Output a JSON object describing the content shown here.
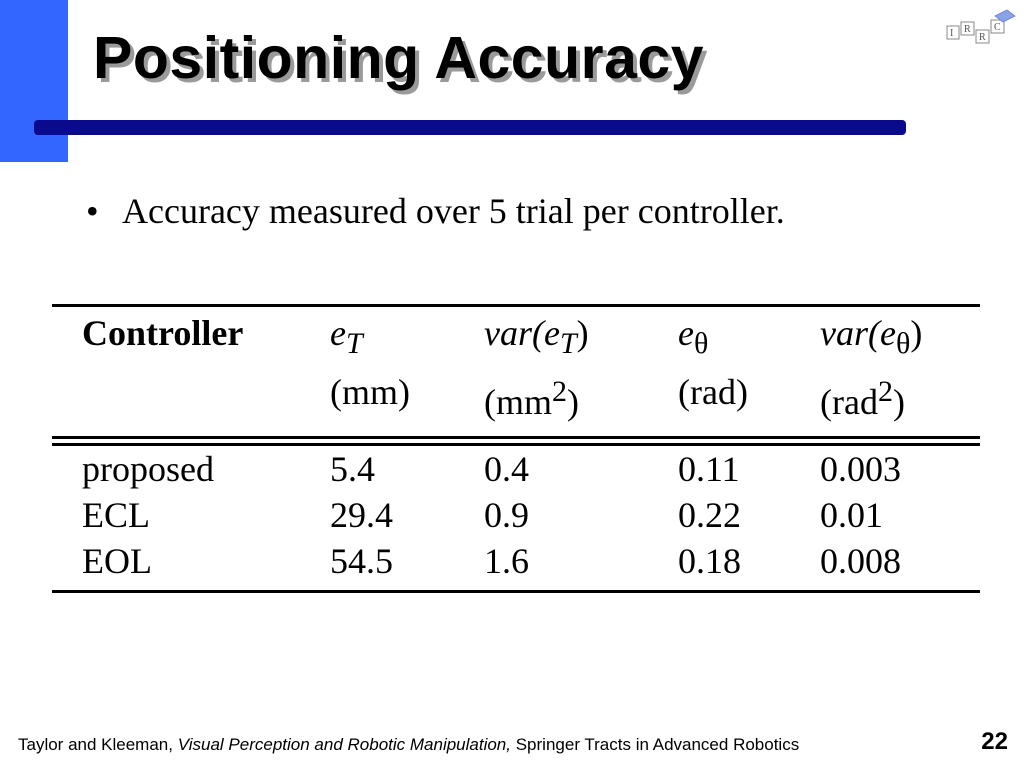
{
  "slide": {
    "title": "Positioning Accuracy",
    "bullet": "Accuracy measured over 5 trial per controller.",
    "bullet_marker": "•",
    "logo_letters": [
      "I",
      "R",
      "R",
      "C"
    ],
    "page_number": "22",
    "colors": {
      "side_bar": "#3366ff",
      "title_rule": "#0a0a8c",
      "title_shadow": "#9a9a9a"
    }
  },
  "table": {
    "header": {
      "controller": "Controller",
      "c1_sym": "e",
      "c1_sub": "T",
      "c1_unit": "(mm)",
      "c2_fn": "var(",
      "c2_sym": "e",
      "c2_sub": "T",
      "c2_close": ")",
      "c2_unit_a": "(mm",
      "c2_unit_sup": "2",
      "c2_unit_b": ")",
      "c3_sym": "e",
      "c3_sub": "θ",
      "c3_unit": "(rad)",
      "c4_fn": "var(",
      "c4_sym": "e",
      "c4_sub": "θ",
      "c4_close": ")",
      "c4_unit_a": "(rad",
      "c4_unit_sup": "2",
      "c4_unit_b": ")"
    },
    "rows": [
      {
        "controller": "proposed",
        "eT": "5.4",
        "var_eT": "0.4",
        "etheta": "0.11",
        "var_etheta": "0.003"
      },
      {
        "controller": "ECL",
        "eT": "29.4",
        "var_eT": "0.9",
        "etheta": "0.22",
        "var_etheta": "0.01"
      },
      {
        "controller": "EOL",
        "eT": "54.5",
        "var_eT": "1.6",
        "etheta": "0.18",
        "var_etheta": "0.008"
      }
    ]
  },
  "footer": {
    "authors": "Taylor and Kleeman, ",
    "book": "Visual Perception and Robotic Manipulation,",
    "series": " Springer Tracts in Advanced Robotics"
  }
}
